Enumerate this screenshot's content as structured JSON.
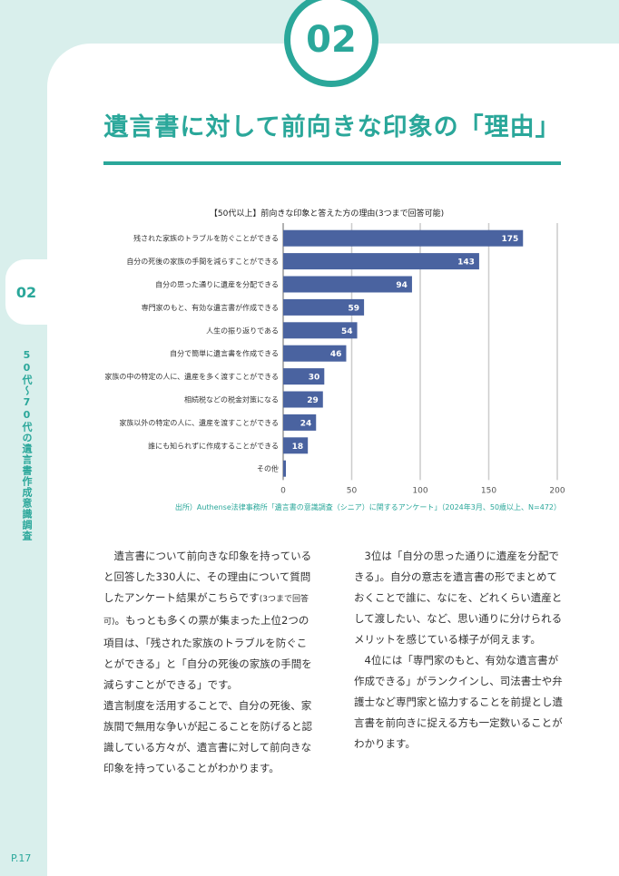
{
  "section_number": "02",
  "page_title": "遺言書に対して前向きな印象の「理由」",
  "side_tab_number": "02",
  "vertical_title": "50代〜70代の遺言書作成意識調査",
  "page_number": "P.17",
  "colors": {
    "accent": "#2aa79a",
    "bar": "#4a63a0",
    "grid": "#cccccc",
    "background": "#d9efec"
  },
  "chart_data": {
    "type": "bar",
    "orientation": "horizontal",
    "title": "【50代以上】前向きな印象と答えた方の理由(3つまで回答可能)",
    "categories": [
      "残された家族のトラブルを防ぐことができる",
      "自分の死後の家族の手間を減らすことができる",
      "自分の思った通りに遺産を分配できる",
      "専門家のもと、有効な遺言書が作成できる",
      "人生の振り返りである",
      "自分で簡単に遺言書を作成できる",
      "家族の中の特定の人に、遺産を多く渡すことができる",
      "相続税などの税金対策になる",
      "家族以外の特定の人に、遺産を渡すことができる",
      "誰にも知られずに作成することができる",
      "その他"
    ],
    "values": [
      175,
      143,
      94,
      59,
      54,
      46,
      30,
      29,
      24,
      18,
      2
    ],
    "xlim": [
      0,
      200
    ],
    "xticks": [
      0,
      50,
      100,
      150,
      200
    ],
    "grid": true,
    "source": "出所）Authense法律事務所「遺言書の意識調査（シニア）に関するアンケート」（2024年3月、50歳以上、N=472）"
  },
  "body": {
    "left": {
      "p1a": "遺言書について前向きな印象を持っていると回答した330人に、その理由について質問したアンケート結果がこちらです",
      "p1_note": "(3つまで回答可)",
      "p1b": "。もっとも多くの票が集まった上位2つの項目は、「残された家族のトラブルを防ぐことができる」と「自分の死後の家族の手間を減らすことができる」です。",
      "p2": "遺言制度を活用することで、自分の死後、家族間で無用な争いが起こることを防げると認識している方々が、遺言書に対して前向きな印象を持っていることがわかります。"
    },
    "right": {
      "p1": "3位は「自分の思った通りに遺産を分配できる」。自分の意志を遺言書の形でまとめておくことで誰に、なにを、どれくらい遺産として渡したい、など、思い通りに分けられるメリットを感じている様子が伺えます。",
      "p2": "4位には「専門家のもと、有効な遺言書が作成できる」がランクインし、司法書士や弁護士など専門家と協力することを前提とし遺言書を前向きに捉える方も一定数いることがわかります。"
    }
  }
}
